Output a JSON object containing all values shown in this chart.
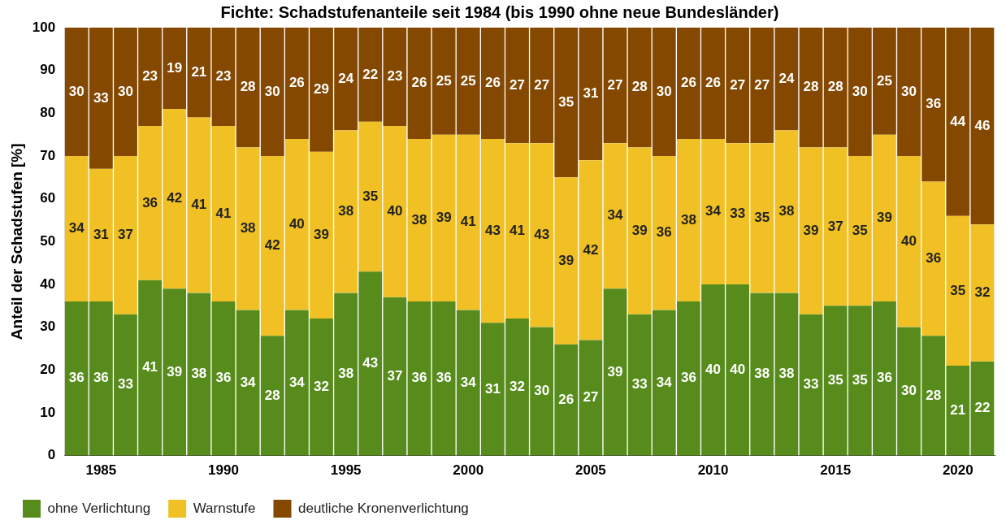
{
  "chart_data": {
    "type": "bar",
    "stacked": true,
    "title": "Fichte: Schadstufenanteile seit 1984 (bis 1990 ohne neue Bundesländer)",
    "ylabel": "Anteil der Schadstufen [%]",
    "categories": [
      null,
      "1985",
      null,
      null,
      null,
      null,
      "1990",
      null,
      null,
      null,
      null,
      "1995",
      null,
      null,
      null,
      null,
      "2000",
      null,
      null,
      null,
      null,
      "2005",
      null,
      null,
      null,
      null,
      "2010",
      null,
      null,
      null,
      null,
      "2015",
      null,
      null,
      null,
      null,
      "2020",
      null
    ],
    "series": [
      {
        "name": "ohne Verlichtung",
        "color": "#578c1c",
        "values": [
          36,
          36,
          33,
          41,
          39,
          38,
          36,
          34,
          28,
          34,
          32,
          38,
          43,
          37,
          36,
          36,
          34,
          31,
          32,
          30,
          26,
          27,
          39,
          33,
          34,
          36,
          40,
          40,
          38,
          38,
          33,
          35,
          35,
          36,
          30,
          28,
          21,
          22
        ]
      },
      {
        "name": "Warnstufe",
        "color": "#f0c024",
        "values": [
          34,
          31,
          37,
          36,
          42,
          41,
          41,
          38,
          42,
          40,
          39,
          38,
          35,
          40,
          38,
          39,
          41,
          43,
          41,
          43,
          39,
          42,
          34,
          39,
          36,
          38,
          34,
          33,
          35,
          38,
          39,
          37,
          35,
          39,
          40,
          36,
          35,
          32
        ]
      },
      {
        "name": "deutliche Kronenverlichtung",
        "color": "#844800",
        "values": [
          30,
          33,
          30,
          23,
          19,
          21,
          23,
          28,
          30,
          26,
          29,
          24,
          22,
          23,
          26,
          25,
          25,
          26,
          27,
          27,
          35,
          31,
          27,
          28,
          30,
          26,
          26,
          27,
          27,
          24,
          28,
          28,
          30,
          25,
          30,
          36,
          44,
          46
        ]
      }
    ],
    "ylim": [
      0,
      100
    ],
    "yticks": [
      0,
      10,
      20,
      30,
      40,
      50,
      60,
      70,
      80,
      90,
      100
    ],
    "grid": false,
    "legend": "bottom",
    "data_labels": true
  }
}
